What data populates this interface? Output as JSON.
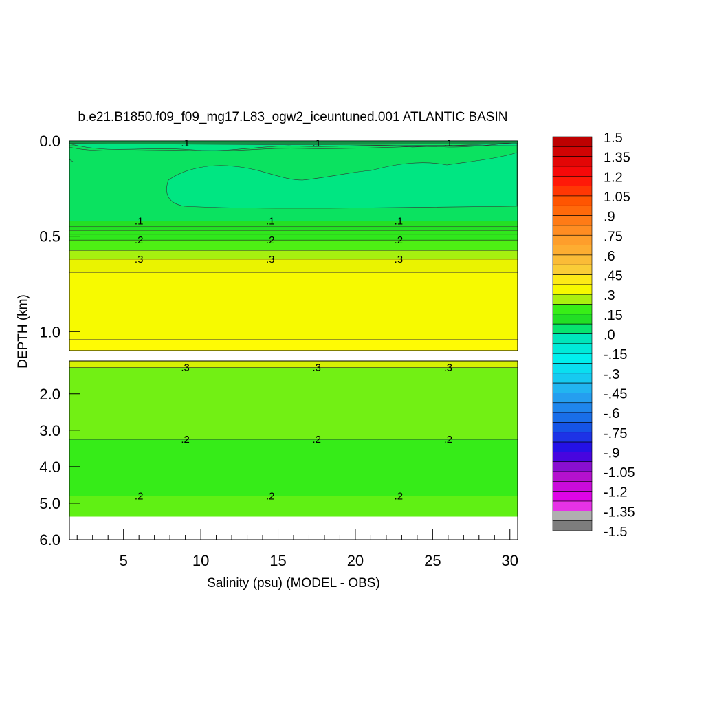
{
  "chart_data": {
    "type": "heatmap",
    "title": "b.e21.B1850.f09_f09_mg17.L83_ogw2_iceuntuned.001 ATLANTIC BASIN",
    "xlabel": "Salinity (psu) (MODEL - OBS)",
    "ylabel": "DEPTH (km)",
    "xlim": [
      1.5,
      30.5
    ],
    "x_ticks": [
      5,
      10,
      15,
      20,
      25,
      30
    ],
    "x_tick_labels": [
      "5",
      "10",
      "15",
      "20",
      "25",
      "30"
    ],
    "upper_panel": {
      "ylim": [
        0.0,
        1.1
      ],
      "y_ticks": [
        0.0,
        0.5,
        1.0
      ],
      "y_tick_labels": [
        "0.0",
        "0.5",
        "1.0"
      ],
      "bands": [
        {
          "from": 0.0,
          "to": 0.42,
          "value": 0.05
        },
        {
          "from": 0.42,
          "to": 0.47,
          "value": 0.12
        },
        {
          "from": 0.47,
          "to": 0.52,
          "value": 0.16
        },
        {
          "from": 0.52,
          "to": 0.575,
          "value": 0.21
        },
        {
          "from": 0.575,
          "to": 0.62,
          "value": 0.26
        },
        {
          "from": 0.62,
          "to": 0.69,
          "value": 0.31
        },
        {
          "from": 0.69,
          "to": 1.04,
          "value": 0.34
        },
        {
          "from": 1.04,
          "to": 1.1,
          "value": 0.37
        }
      ],
      "region_values": {
        "surface_layer": 0.05,
        "mid_patch": 0.02
      },
      "contours": [
        {
          "level": ".1",
          "depth": 0.0,
          "label_x": [
            9.0,
            17.5,
            26.0
          ]
        },
        {
          "level": ".1",
          "depth": 0.42,
          "label_x": [
            6.0,
            14.5,
            22.8
          ]
        },
        {
          "level": ".2",
          "depth": 0.52,
          "label_x": [
            6.0,
            14.5,
            22.8
          ]
        },
        {
          "level": ".3",
          "depth": 0.62,
          "label_x": [
            6.0,
            14.5,
            22.8
          ]
        }
      ]
    },
    "lower_panel": {
      "ylim": [
        1.1,
        6.0
      ],
      "y_ticks": [
        2.0,
        3.0,
        4.0,
        5.0,
        6.0
      ],
      "y_tick_labels": [
        "2.0",
        "3.0",
        "4.0",
        "5.0",
        "6.0"
      ],
      "bands": [
        {
          "from": 1.1,
          "to": 1.28,
          "value": 0.29
        },
        {
          "from": 1.28,
          "to": 3.25,
          "value": 0.23
        },
        {
          "from": 3.25,
          "to": 4.8,
          "value": 0.18
        },
        {
          "from": 4.8,
          "to": 5.37,
          "value": 0.22
        }
      ],
      "no_data_below": 5.37,
      "contours": [
        {
          "level": ".3",
          "depth": 1.28,
          "label_x": [
            9.0,
            17.5,
            26.0
          ]
        },
        {
          "level": ".2",
          "depth": 3.25,
          "label_x": [
            9.0,
            17.5,
            26.0
          ]
        },
        {
          "level": ".2",
          "depth": 4.8,
          "label_x": [
            6.0,
            14.5,
            22.8
          ]
        }
      ]
    },
    "colorbar": {
      "min": -1.5,
      "max": 1.5,
      "step": 0.075,
      "labels": [
        "1.5",
        "1.35",
        "1.2",
        "1.05",
        ".9",
        ".75",
        ".6",
        ".45",
        ".3",
        ".15",
        ".0",
        "-.15",
        "-.3",
        "-.45",
        "-.6",
        "-.75",
        "-.9",
        "-1.05",
        "-1.2",
        "-1.35",
        "-1.5"
      ],
      "label_values": [
        1.5,
        1.35,
        1.2,
        1.05,
        0.9,
        0.75,
        0.6,
        0.45,
        0.3,
        0.15,
        0.0,
        -0.15,
        -0.3,
        -0.45,
        -0.6,
        -0.75,
        -0.9,
        -1.05,
        -1.2,
        -1.35,
        -1.5
      ]
    }
  }
}
